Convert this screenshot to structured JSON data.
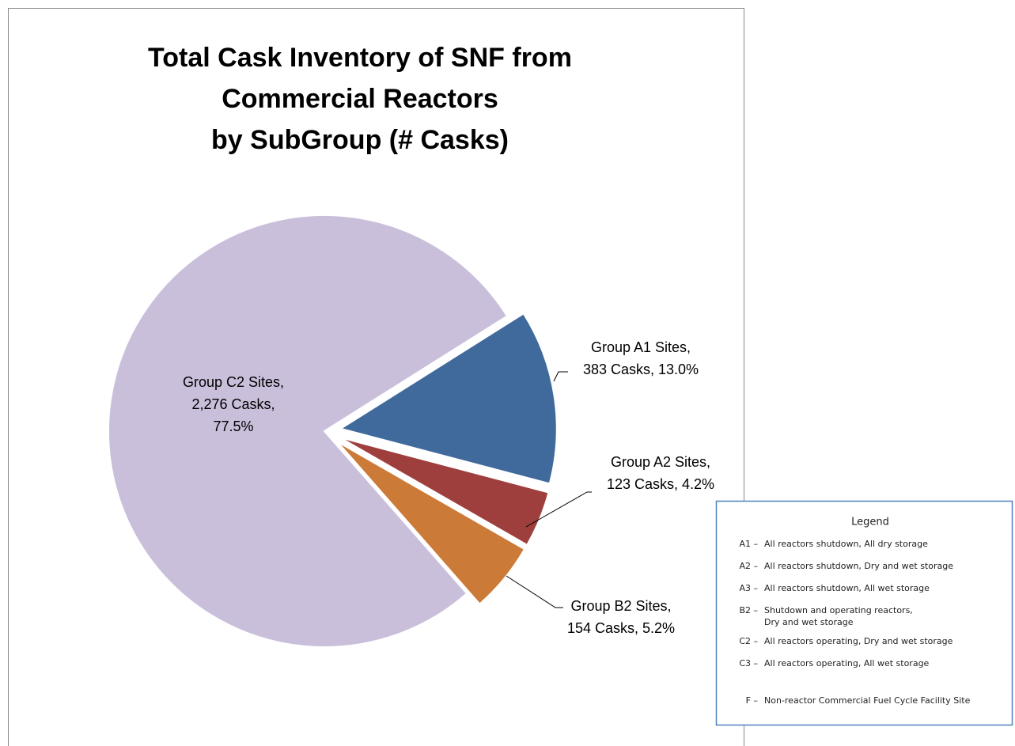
{
  "chart_data": {
    "type": "pie",
    "title": [
      "Total Cask Inventory of SNF from",
      "Commercial Reactors",
      "by SubGroup (# Casks)"
    ],
    "categories": [
      "Group A1 Sites,",
      "Group A2 Sites,",
      "Group B2 Sites,",
      "Group C2 Sites,"
    ],
    "values": [
      383,
      123,
      154,
      2276
    ],
    "value_labels": [
      [
        "383 Casks, 13.0%"
      ],
      [
        "123 Casks, 4.2%"
      ],
      [
        "154 Casks, 5.2%"
      ],
      [
        "2,276 Casks,",
        "77.5%"
      ]
    ],
    "colors": [
      "#406a9c",
      "#9e3f3e",
      "#cc7a38",
      "#c9bfdb"
    ],
    "legend": {
      "title": "Legend",
      "items": [
        {
          "code": "A1 –",
          "text": [
            "All reactors shutdown, All dry storage"
          ]
        },
        {
          "code": "A2 –",
          "text": [
            "All reactors shutdown, Dry and wet storage"
          ]
        },
        {
          "code": "A3 –",
          "text": [
            "All reactors shutdown, All wet storage"
          ]
        },
        {
          "code": "B2 –",
          "text": [
            "Shutdown and operating reactors,",
            "Dry and wet storage"
          ]
        },
        {
          "code": "C2 –",
          "text": [
            "All reactors operating, Dry and wet storage"
          ]
        },
        {
          "code": "C3 –",
          "text": [
            "All reactors operating, All wet storage"
          ]
        },
        {
          "code": "F –",
          "text": [
            "Non-reactor Commercial Fuel Cycle Facility Site"
          ]
        }
      ]
    }
  }
}
